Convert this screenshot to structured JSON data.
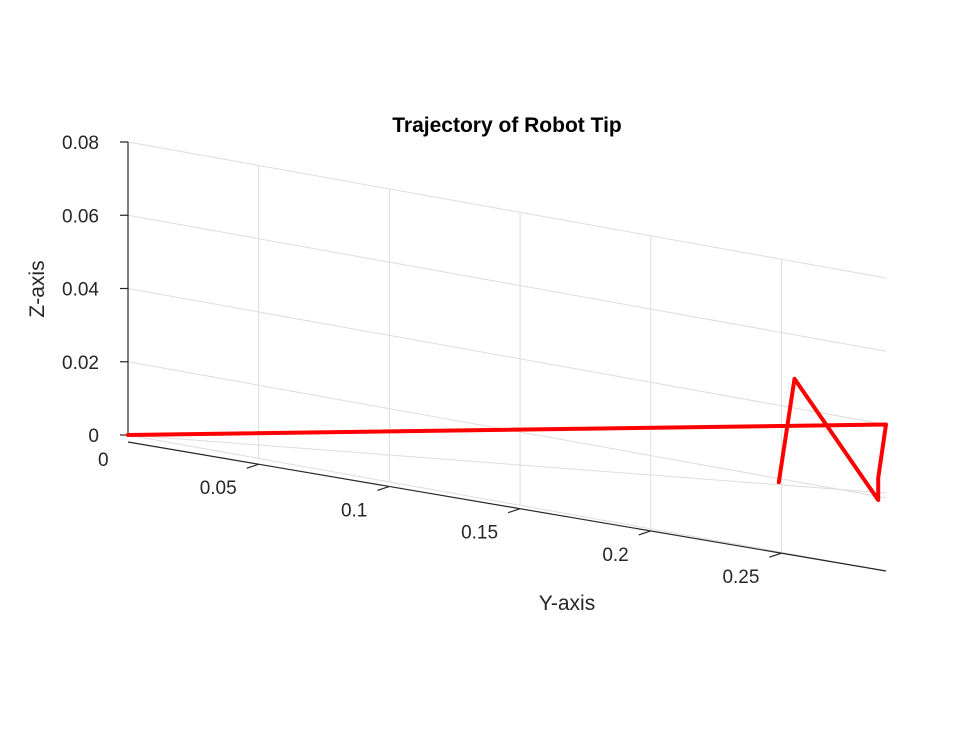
{
  "chart_data": {
    "type": "line",
    "title": "Trajectory of Robot Tip",
    "xlabel": "",
    "ylabel": "Y-axis",
    "zlabel": "Z-axis",
    "view": "3d",
    "grid": true,
    "ylim": [
      0,
      0.29
    ],
    "zlim": [
      0,
      0.08
    ],
    "y_ticks": [
      "0",
      "0.05",
      "0.1",
      "0.15",
      "0.2",
      "0.25"
    ],
    "z_ticks": [
      "0",
      "0.02",
      "0.04",
      "0.06",
      "0.08"
    ],
    "line_color": "#ff0000",
    "series": [
      {
        "y": [
          0,
          0.29,
          0.287,
          0.287,
          0.255,
          0.249
        ],
        "z": [
          0,
          0.04,
          0.025,
          0.019,
          0.048,
          0.019
        ]
      }
    ]
  }
}
